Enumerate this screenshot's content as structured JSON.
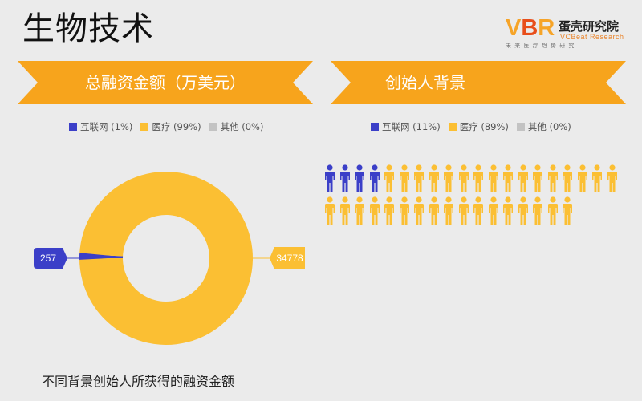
{
  "page": {
    "title": "生物技术",
    "caption": "不同背景创始人所获得的融资金额"
  },
  "logo": {
    "mark_v": "V",
    "mark_b": "B",
    "mark_r": "R",
    "name_cn": "蛋壳研究院",
    "name_en": "VCBeat Research",
    "tagline": "未来医疗趋势研究"
  },
  "colors": {
    "internet": "#3b3fc8",
    "medical": "#fbbf33",
    "other": "#c3c3c3",
    "ribbon": "#f7a41c"
  },
  "icons": {
    "person": "person-icon"
  },
  "chart_data": [
    {
      "type": "pie",
      "title": "总融资金额（万美元）",
      "style": "donut",
      "legend": [
        {
          "name": "互联网 (1%)",
          "color": "#3b3fc8"
        },
        {
          "name": "医疗 (99%)",
          "color": "#fbbf33"
        },
        {
          "name": "其他 (0%)",
          "color": "#c3c3c3"
        }
      ],
      "slices": [
        {
          "name": "互联网",
          "value": 257,
          "label": "257",
          "color": "#3b3fc8"
        },
        {
          "name": "医疗",
          "value": 34778,
          "label": "34778",
          "color": "#fbbf33"
        },
        {
          "name": "其他",
          "value": 0,
          "color": "#c3c3c3"
        }
      ],
      "legend_position": "top"
    },
    {
      "type": "pictogram",
      "title": "创始人背景",
      "legend": [
        {
          "name": "互联网 (11%)",
          "color": "#3b3fc8"
        },
        {
          "name": "医疗 (89%)",
          "color": "#fbbf33"
        },
        {
          "name": "其他 (0%)",
          "color": "#c3c3c3"
        }
      ],
      "groups": [
        {
          "name": "互联网",
          "count": 4,
          "color": "#3b3fc8"
        },
        {
          "name": "医疗",
          "count": 33,
          "color": "#fbbf33"
        },
        {
          "name": "其他",
          "count": 0,
          "color": "#c3c3c3"
        }
      ],
      "icons_per_row": 20,
      "legend_position": "top"
    }
  ]
}
